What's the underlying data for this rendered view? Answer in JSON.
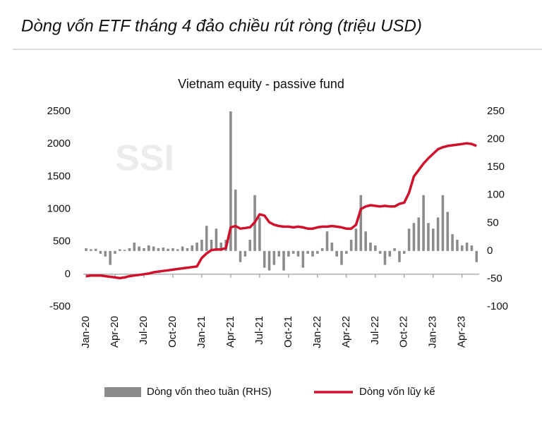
{
  "chart_data": {
    "type": "combo",
    "title": "Dòng vốn ETF tháng 4 đảo chiều rút ròng (triệu USD)",
    "subtitle": "Vietnam equity - passive fund",
    "watermark": "SSI",
    "categories": [
      "Jan-20",
      null,
      null,
      null,
      null,
      null,
      "Apr-20",
      null,
      null,
      null,
      null,
      null,
      "Jul-20",
      null,
      null,
      null,
      null,
      null,
      "Oct-20",
      null,
      null,
      null,
      null,
      null,
      "Jan-21",
      null,
      null,
      null,
      null,
      null,
      "Apr-21",
      null,
      null,
      null,
      null,
      null,
      "Jul-21",
      null,
      null,
      null,
      null,
      null,
      "Oct-21",
      null,
      null,
      null,
      null,
      null,
      "Jan-22",
      null,
      null,
      null,
      null,
      null,
      "Apr-22",
      null,
      null,
      null,
      null,
      null,
      "Jul-22",
      null,
      null,
      null,
      null,
      null,
      "Oct-22",
      null,
      null,
      null,
      null,
      null,
      "Jan-23",
      null,
      null,
      null,
      null,
      null,
      "Apr-23",
      null,
      null,
      null
    ],
    "series": [
      {
        "name": "Dòng vốn theo tuần (RHS)",
        "type": "bar",
        "axis": "y2",
        "color": "#8c8c8c",
        "values": [
          5,
          3,
          4,
          -5,
          -10,
          -25,
          -5,
          3,
          2,
          5,
          15,
          8,
          5,
          10,
          8,
          5,
          6,
          4,
          5,
          3,
          8,
          5,
          10,
          15,
          20,
          45,
          20,
          40,
          15,
          20,
          250,
          110,
          -20,
          -10,
          20,
          100,
          60,
          -30,
          -35,
          -25,
          -10,
          -35,
          -10,
          -5,
          -10,
          -30,
          -5,
          -10,
          -5,
          5,
          35,
          15,
          -10,
          -25,
          -5,
          20,
          40,
          100,
          35,
          15,
          10,
          -5,
          -25,
          -10,
          5,
          -20,
          -5,
          40,
          50,
          60,
          100,
          50,
          40,
          60,
          100,
          70,
          30,
          20,
          10,
          15,
          10,
          -20
        ]
      },
      {
        "name": "Dòng vốn lũy kế",
        "type": "line",
        "color": "#d0112b",
        "values": [
          -30,
          -20,
          -20,
          -20,
          -30,
          -40,
          -50,
          -60,
          -50,
          -30,
          -20,
          -10,
          0,
          10,
          30,
          40,
          50,
          60,
          70,
          80,
          90,
          100,
          110,
          120,
          250,
          320,
          370,
          380,
          380,
          400,
          720,
          740,
          700,
          710,
          720,
          800,
          920,
          900,
          800,
          760,
          740,
          730,
          730,
          720,
          730,
          720,
          700,
          700,
          720,
          730,
          730,
          740,
          730,
          720,
          700,
          700,
          760,
          1000,
          1040,
          1060,
          1050,
          1040,
          1050,
          1040,
          1040,
          1080,
          1100,
          1250,
          1500,
          1600,
          1700,
          1780,
          1850,
          1920,
          1950,
          1970,
          1980,
          1990,
          2000,
          2010,
          2000,
          1970
        ]
      }
    ],
    "ylim": [
      -500,
      2500
    ],
    "yticks": [
      -500,
      0,
      500,
      1000,
      1500,
      2000,
      2500
    ],
    "y2lim": [
      -100,
      250
    ],
    "y2ticks": [
      -100,
      -50,
      0,
      50,
      100,
      150,
      200,
      250
    ],
    "legend": "bottom"
  }
}
